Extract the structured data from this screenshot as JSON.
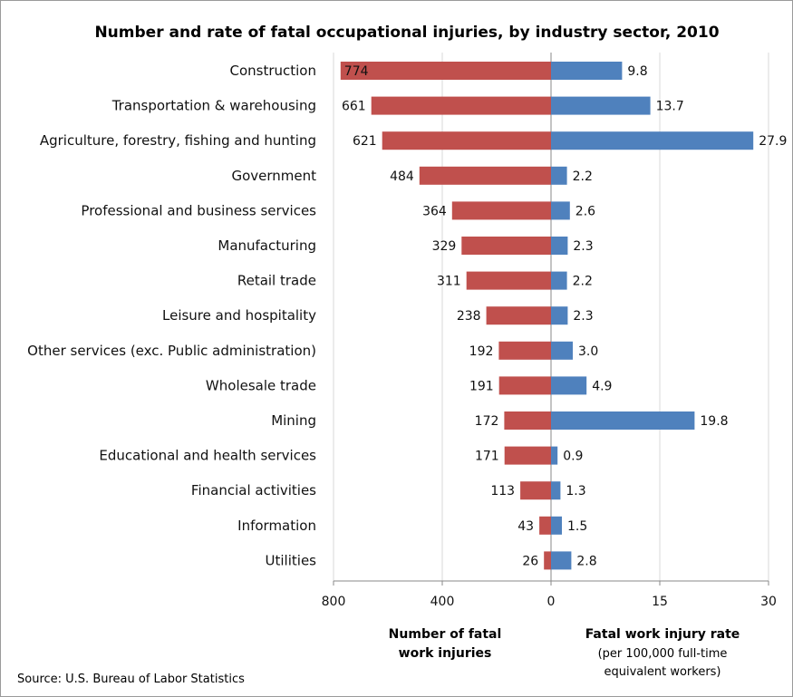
{
  "title": "Number and rate of fatal occupational injuries, by industry sector, 2010",
  "source": "Source: U.S. Bureau of Labor Statistics",
  "left_axis": {
    "title_line1": "Number of fatal",
    "title_line2": "work injuries"
  },
  "right_axis": {
    "title_line1": "Fatal work injury rate",
    "sub_line1": "(per 100,000 full-time",
    "sub_line2": "equivalent workers)"
  },
  "colors": {
    "count_bar": "#c0504d",
    "rate_bar": "#4f81bd",
    "grid": "#d9d9d9",
    "axis": "#888888"
  },
  "chart_data": {
    "type": "bar",
    "orientation": "horizontal",
    "categories": [
      "Construction",
      "Transportation & warehousing",
      "Agriculture, forestry, fishing and hunting",
      "Government",
      "Professional and business services",
      "Manufacturing",
      "Retail trade",
      "Leisure and hospitality",
      "Other services (exc. Public administration)",
      "Wholesale trade",
      "Mining",
      "Educational and health services",
      "Financial activities",
      "Information",
      "Utilities"
    ],
    "series": [
      {
        "name": "Number of fatal work injuries",
        "values": [
          774,
          661,
          621,
          484,
          364,
          329,
          311,
          238,
          192,
          191,
          172,
          171,
          113,
          43,
          26
        ],
        "labels": [
          "774",
          "661",
          "621",
          "484",
          "364",
          "329",
          "311",
          "238",
          "192",
          "191",
          "172",
          "171",
          "113",
          "43",
          "26"
        ],
        "xlim": [
          800,
          0
        ],
        "ticks": [
          "800",
          "400",
          "0"
        ],
        "tick_values": [
          800,
          400,
          0
        ]
      },
      {
        "name": "Fatal work injury rate",
        "values": [
          9.8,
          13.7,
          27.9,
          2.2,
          2.6,
          2.3,
          2.2,
          2.3,
          3.0,
          4.9,
          19.8,
          0.9,
          1.3,
          1.5,
          2.8
        ],
        "labels": [
          "9.8",
          "13.7",
          "27.9",
          "2.2",
          "2.6",
          "2.3",
          "2.2",
          "2.3",
          "3.0",
          "4.9",
          "19.8",
          "0.9",
          "1.3",
          "1.5",
          "2.8"
        ],
        "xlim": [
          0,
          30
        ],
        "ticks": [
          "15",
          "30"
        ],
        "tick_values": [
          15,
          30
        ]
      }
    ],
    "grid": true
  }
}
